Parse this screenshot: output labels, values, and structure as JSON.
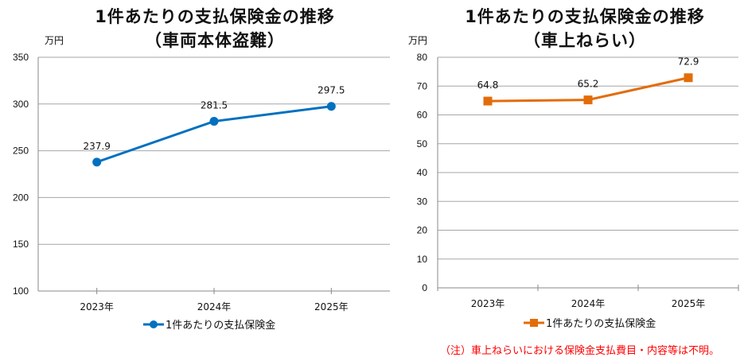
{
  "chart_data": [
    {
      "type": "line",
      "title": "1件あたりの支払保険金の推移",
      "subtitle": "（車両本体盗難）",
      "ylabel": "万円",
      "categories": [
        "2023年",
        "2024年",
        "2025年"
      ],
      "ylim": [
        100,
        350
      ],
      "yticks": [
        100,
        150,
        200,
        250,
        300,
        350
      ],
      "grid": "horizontal",
      "legend": "bottom",
      "marker": "circle",
      "color": "#0070c0",
      "series": [
        {
          "name": "1件あたりの支払保険金",
          "values": [
            237.9,
            281.5,
            297.5
          ]
        }
      ]
    },
    {
      "type": "line",
      "title": "1件あたりの支払保険金の推移",
      "subtitle": "（車上ねらい）",
      "ylabel": "万円",
      "categories": [
        "2023年",
        "2024年",
        "2025年"
      ],
      "ylim": [
        0,
        80
      ],
      "yticks": [
        0,
        10,
        20,
        30,
        40,
        50,
        60,
        70,
        80
      ],
      "grid": "horizontal",
      "legend": "bottom",
      "marker": "square",
      "color": "#e36c0a",
      "series": [
        {
          "name": "1件あたりの支払保険金",
          "values": [
            64.8,
            65.2,
            72.9
          ]
        }
      ]
    }
  ],
  "note": "（注）車上ねらいにおける保険金支払費目・内容等は不明。"
}
